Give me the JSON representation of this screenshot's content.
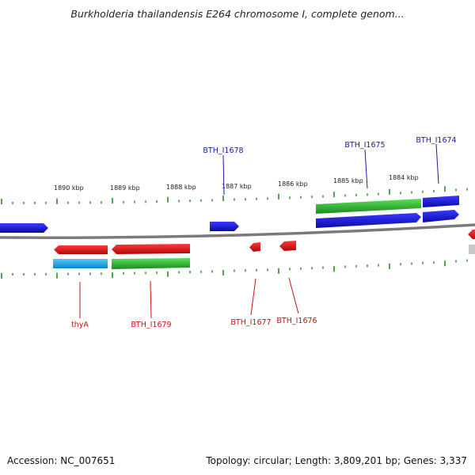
{
  "header": {
    "title": "Burkholderia thailandensis E264 chromosome I, complete genom..."
  },
  "footer": {
    "accession": "Accession: NC_007651",
    "summary": "Topology: circular; Length: 3,809,201 bp; Genes: 3,337"
  },
  "ruler": {
    "ticks": [
      "1890 kbp",
      "1889 kbp",
      "1888 kbp",
      "1887 kbp",
      "1886 kbp",
      "1885 kbp",
      "1884 kbp"
    ]
  },
  "genes": {
    "top": [
      "BTH_I1678",
      "BTH_I1675",
      "BTH_I1674"
    ],
    "bottom": [
      "thyA",
      "BTH_I1679",
      "BTH_I1677",
      "BTH_I1676"
    ]
  },
  "colors": {
    "forward_label": "#1a1aa8",
    "reverse_label": "#cc1111",
    "forward_gene": "#1010d8",
    "reverse_gene": "#e01010",
    "rna_gene": "#30b830",
    "cyan_gene": "#1aa8e8",
    "tick": "#2a8a2a",
    "backbone": "#888888"
  }
}
